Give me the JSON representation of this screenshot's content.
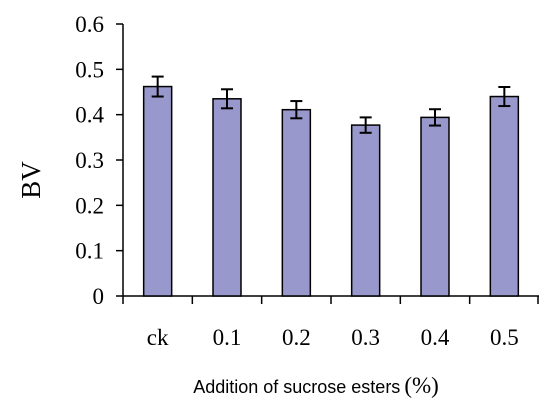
{
  "chart_data": {
    "type": "bar",
    "categories": [
      "ck",
      "0.1",
      "0.2",
      "0.3",
      "0.4",
      "0.5"
    ],
    "values": [
      0.462,
      0.435,
      0.411,
      0.377,
      0.394,
      0.44
    ],
    "errors": [
      0.022,
      0.021,
      0.019,
      0.017,
      0.018,
      0.021
    ],
    "ylabel": "BV",
    "xlabel": "Addition of sucrose esters",
    "xlabel_unit": "(%)",
    "ylim": [
      0,
      0.6
    ],
    "yticks": [
      "0",
      "0.1",
      "0.2",
      "0.3",
      "0.4",
      "0.5",
      "0.6"
    ],
    "grid": false,
    "bar_color": "#9898cc"
  }
}
